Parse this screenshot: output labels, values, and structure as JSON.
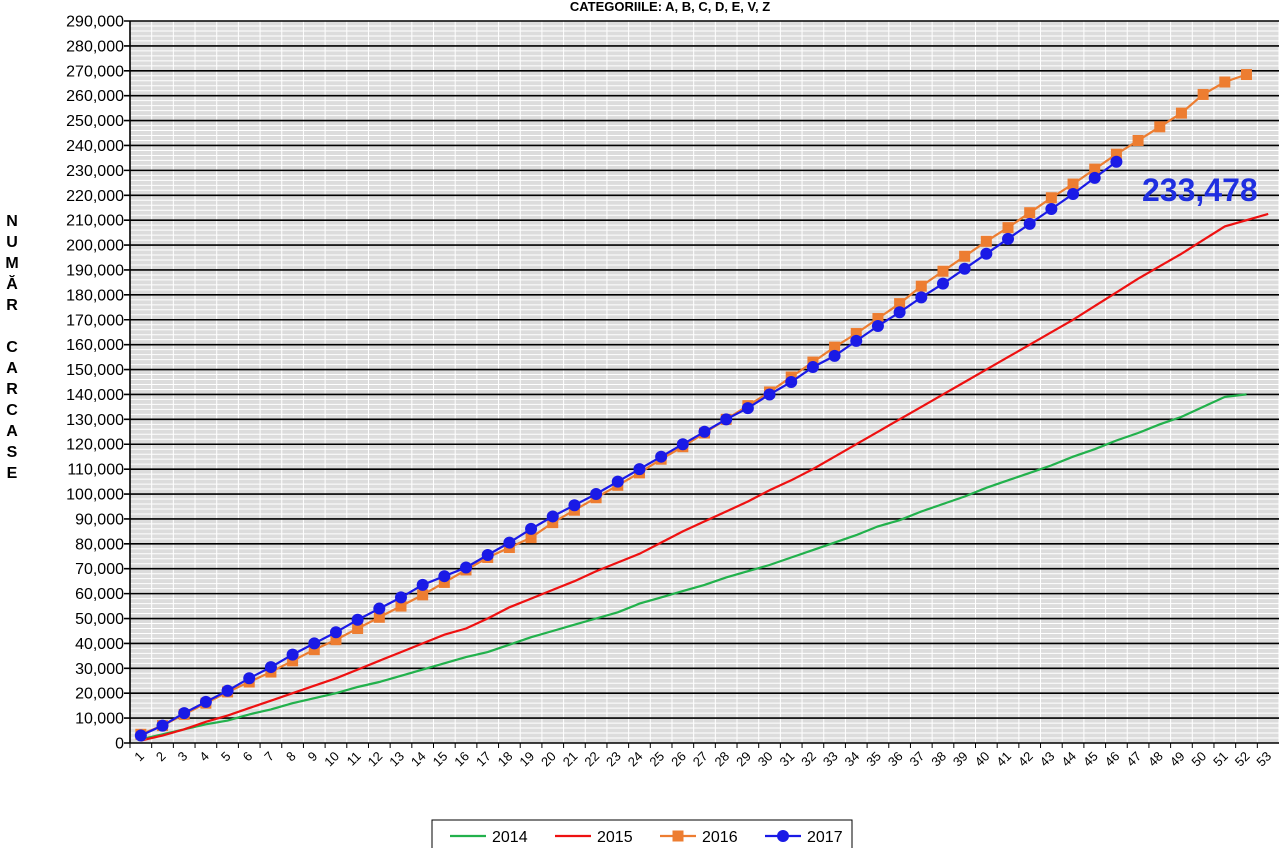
{
  "chart_data": {
    "type": "line",
    "title": "CATEGORIILE: A, B, C, D, E, V, Z",
    "ylabel": "NUMĂR CARCASE",
    "ylim": [
      0,
      290000
    ],
    "ytick_labels": [
      "0",
      "10,000",
      "20,000",
      "30,000",
      "40,000",
      "50,000",
      "60,000",
      "70,000",
      "80,000",
      "90,000",
      "100,000",
      "110,000",
      "120,000",
      "130,000",
      "140,000",
      "150,000",
      "160,000",
      "170,000",
      "180,000",
      "190,000",
      "200,000",
      "210,000",
      "220,000",
      "230,000",
      "240,000",
      "250,000",
      "260,000",
      "270,000",
      "280,000",
      "290,000"
    ],
    "x": [
      "1",
      "2",
      "3",
      "4",
      "5",
      "6",
      "7",
      "8",
      "9",
      "10",
      "11",
      "12",
      "13",
      "14",
      "15",
      "16",
      "17",
      "18",
      "19",
      "20",
      "21",
      "22",
      "23",
      "24",
      "25",
      "26",
      "27",
      "28",
      "29",
      "30",
      "31",
      "32",
      "33",
      "34",
      "35",
      "36",
      "37",
      "38",
      "39",
      "40",
      "41",
      "42",
      "43",
      "44",
      "45",
      "46",
      "47",
      "48",
      "49",
      "50",
      "51",
      "52",
      "53"
    ],
    "grid": true,
    "legend_position": "bottom",
    "annotation": "233,478",
    "series": [
      {
        "name": "2014",
        "color": "#22b14c",
        "marker": "none",
        "values": [
          1500,
          3500,
          5500,
          7500,
          9000,
          11500,
          13500,
          16000,
          18000,
          20000,
          22500,
          24500,
          27000,
          29500,
          32000,
          34500,
          36500,
          39500,
          42500,
          45000,
          47500,
          50000,
          52500,
          56000,
          58500,
          61000,
          63500,
          66500,
          69000,
          71500,
          74500,
          77500,
          80500,
          83500,
          87000,
          89500,
          93000,
          96000,
          99000,
          102500,
          105500,
          108500,
          111500,
          115000,
          118000,
          121500,
          124500,
          128000,
          131000,
          135000,
          139000,
          140000,
          null
        ]
      },
      {
        "name": "2015",
        "color": "#ee1111",
        "marker": "none",
        "values": [
          1000,
          3000,
          5500,
          8500,
          11000,
          14000,
          17000,
          20000,
          23000,
          26000,
          29500,
          33000,
          36500,
          40000,
          43500,
          46000,
          50000,
          54500,
          58000,
          61500,
          65000,
          69000,
          72500,
          76000,
          80500,
          85000,
          89000,
          93000,
          97000,
          101500,
          105500,
          110000,
          115000,
          120000,
          125000,
          130000,
          135000,
          140000,
          145000,
          150000,
          155000,
          160000,
          165000,
          170000,
          175500,
          181000,
          186500,
          191500,
          196500,
          202000,
          207500,
          210000,
          212500
        ]
      },
      {
        "name": "2016",
        "color": "#ed7d31",
        "marker": "square",
        "values": [
          3500,
          7000,
          11500,
          16000,
          20500,
          24500,
          28500,
          33000,
          37500,
          41500,
          46000,
          50500,
          55000,
          59500,
          64500,
          69500,
          74500,
          78500,
          82500,
          88500,
          93500,
          98500,
          103500,
          108500,
          114000,
          119000,
          124500,
          130000,
          135500,
          141000,
          147000,
          153000,
          159000,
          164500,
          170500,
          176500,
          183500,
          189500,
          195500,
          201500,
          207000,
          213000,
          219000,
          224500,
          230500,
          236500,
          242000,
          247500,
          253000,
          260500,
          265500,
          268500,
          null
        ]
      },
      {
        "name": "2017",
        "color": "#1a1ae6",
        "marker": "circle",
        "values": [
          3000,
          7000,
          12000,
          16500,
          21000,
          26000,
          30500,
          35500,
          40000,
          44500,
          49500,
          54000,
          58500,
          63500,
          67000,
          70500,
          75500,
          80500,
          86000,
          91000,
          95500,
          100000,
          105000,
          110000,
          115000,
          120000,
          125000,
          130000,
          134500,
          140000,
          145000,
          151000,
          155500,
          161500,
          167500,
          173000,
          179000,
          184500,
          190500,
          196500,
          202500,
          208500,
          214500,
          220500,
          227000,
          233478,
          null,
          null,
          null,
          null,
          null,
          null,
          null
        ]
      }
    ]
  }
}
